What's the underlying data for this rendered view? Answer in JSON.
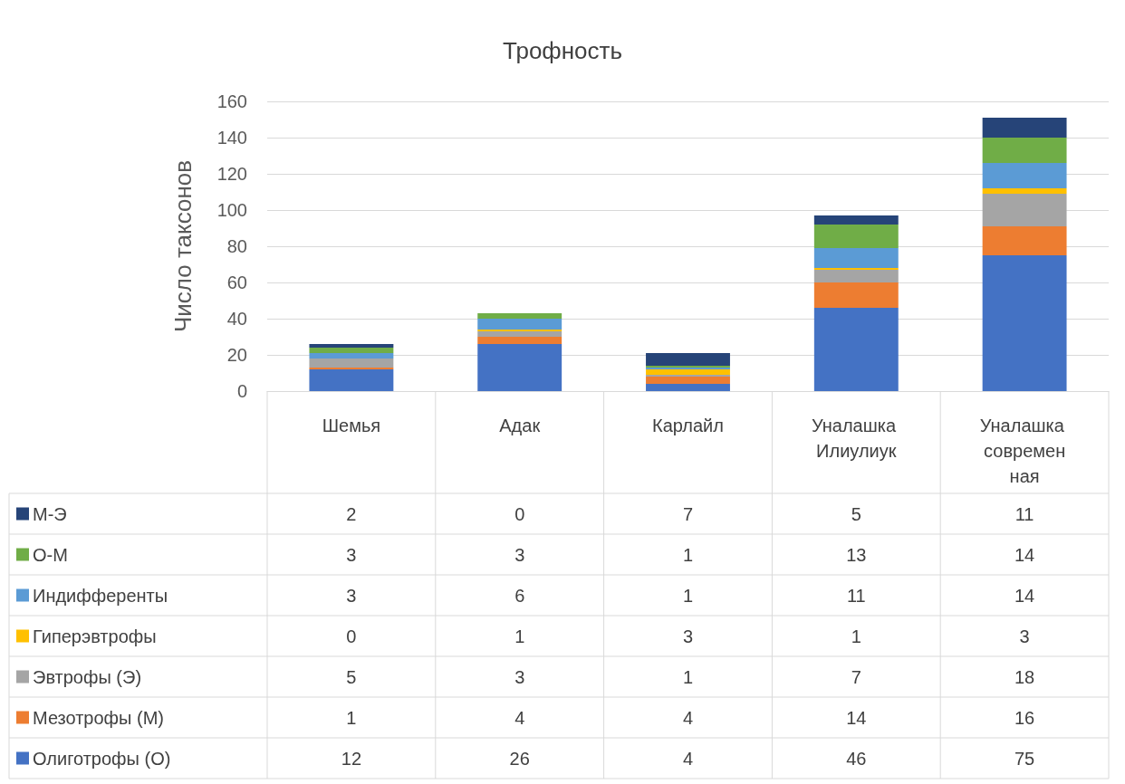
{
  "chart_data": {
    "type": "bar",
    "title": "Трофность",
    "ylabel": "Число таксонов",
    "categories": [
      "Шемья",
      "Адак",
      "Карлайл",
      "Уналашка Илиулиук",
      "Уналашка современная"
    ],
    "series": [
      {
        "name": "Олиготрофы (О)",
        "color": "#4472c4",
        "values": [
          12,
          26,
          4,
          46,
          75
        ]
      },
      {
        "name": "Мезотрофы (М)",
        "color": "#ed7d31",
        "values": [
          1,
          4,
          4,
          14,
          16
        ]
      },
      {
        "name": "Эвтрофы (Э)",
        "color": "#a5a5a5",
        "values": [
          5,
          3,
          1,
          7,
          18
        ]
      },
      {
        "name": "Гиперэвтрофы",
        "color": "#ffc000",
        "values": [
          0,
          1,
          3,
          1,
          3
        ]
      },
      {
        "name": "Индифференты",
        "color": "#5b9bd5",
        "values": [
          3,
          6,
          1,
          11,
          14
        ]
      },
      {
        "name": "О-М",
        "color": "#70ad47",
        "values": [
          3,
          3,
          1,
          13,
          14
        ]
      },
      {
        "name": "М-Э",
        "color": "#264478",
        "values": [
          2,
          0,
          7,
          5,
          11
        ]
      }
    ],
    "stacked": true,
    "ylim": [
      0,
      160
    ],
    "yticks": [
      0,
      20,
      40,
      60,
      80,
      100,
      120,
      140,
      160
    ],
    "grid": "y",
    "legend": "bottom left",
    "data_labels": true
  }
}
